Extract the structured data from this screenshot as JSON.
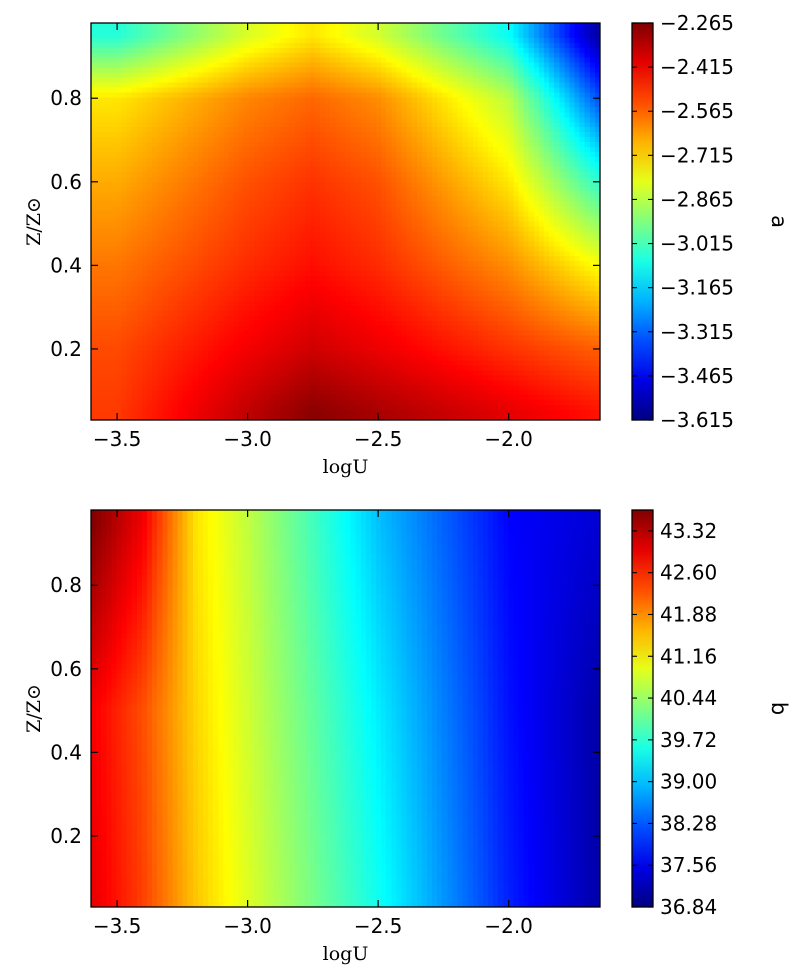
{
  "chart_data": [
    {
      "type": "heatmap",
      "title": "",
      "xlabel": "logU",
      "ylabel": "Z/Z⊙",
      "xlim": [
        -3.6,
        -1.65
      ],
      "ylim": [
        0.03,
        0.98
      ],
      "xticks": [
        -3.5,
        -3.0,
        -2.5,
        -2.0
      ],
      "xtick_labels": [
        "−3.5",
        "−3.0",
        "−2.5",
        "−2.0"
      ],
      "yticks": [
        0.2,
        0.4,
        0.6,
        0.8
      ],
      "ytick_labels": [
        "0.2",
        "0.4",
        "0.6",
        "0.8"
      ],
      "colorbar": {
        "label": "a",
        "colormap": "jet",
        "range": [
          -3.615,
          -2.265
        ],
        "ticks": [
          -2.265,
          -2.415,
          -2.565,
          -2.715,
          -2.865,
          -3.015,
          -3.165,
          -3.315,
          -3.465,
          -3.615
        ],
        "tick_labels": [
          "−2.265",
          "−2.415",
          "−2.565",
          "−2.715",
          "−2.865",
          "−3.015",
          "−3.165",
          "−3.315",
          "−3.465",
          "−3.615"
        ]
      },
      "grid_x": [
        -3.5,
        -3.0,
        -2.75,
        -2.5,
        -2.0,
        -1.65
      ],
      "grid_y": [
        0.05,
        0.2,
        0.4,
        0.6,
        0.8,
        0.95
      ],
      "values": [
        [
          -2.51,
          -2.35,
          -2.28,
          -2.32,
          -2.4,
          -2.46
        ],
        [
          -2.53,
          -2.42,
          -2.37,
          -2.41,
          -2.5,
          -2.56
        ],
        [
          -2.59,
          -2.49,
          -2.45,
          -2.49,
          -2.62,
          -2.78
        ],
        [
          -2.66,
          -2.54,
          -2.5,
          -2.54,
          -2.74,
          -3.05
        ],
        [
          -2.74,
          -2.61,
          -2.57,
          -2.62,
          -2.86,
          -3.35
        ],
        [
          -3.06,
          -2.82,
          -2.74,
          -2.83,
          -3.1,
          -3.58
        ]
      ]
    },
    {
      "type": "heatmap",
      "title": "",
      "xlabel": "logU",
      "ylabel": "Z/Z⊙",
      "xlim": [
        -3.6,
        -1.65
      ],
      "ylim": [
        0.03,
        0.98
      ],
      "xticks": [
        -3.5,
        -3.0,
        -2.5,
        -2.0
      ],
      "xtick_labels": [
        "−3.5",
        "−3.0",
        "−2.5",
        "−2.0"
      ],
      "yticks": [
        0.2,
        0.4,
        0.6,
        0.8
      ],
      "ytick_labels": [
        "0.2",
        "0.4",
        "0.6",
        "0.8"
      ],
      "colorbar": {
        "label": "b",
        "colormap": "jet",
        "range": [
          36.84,
          43.68
        ],
        "ticks": [
          43.32,
          42.6,
          41.88,
          41.16,
          40.44,
          39.72,
          39.0,
          38.28,
          37.56,
          36.84
        ],
        "tick_labels": [
          "43.32",
          "42.60",
          "41.88",
          "41.16",
          "40.44",
          "39.72",
          "39.00",
          "38.28",
          "37.56",
          "36.84"
        ]
      },
      "grid_x": [
        -3.6,
        -3.4,
        -3.2,
        -3.0,
        -2.5,
        -2.0,
        -1.65
      ],
      "grid_y": [
        0.05,
        0.5,
        0.95
      ],
      "values": [
        [
          43.0,
          42.4,
          41.5,
          40.9,
          39.5,
          37.9,
          37.1
        ],
        [
          42.9,
          42.3,
          41.4,
          40.8,
          39.3,
          37.8,
          37.1
        ],
        [
          43.7,
          42.9,
          41.3,
          40.7,
          39.0,
          37.7,
          37.4
        ]
      ]
    }
  ]
}
